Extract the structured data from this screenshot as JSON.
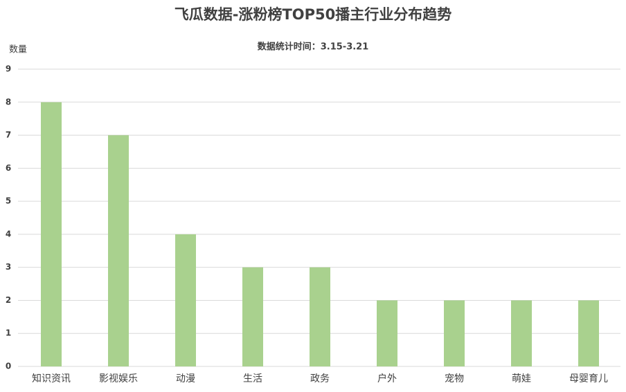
{
  "chart_data": {
    "type": "bar",
    "title": "飞瓜数据-涨粉榜TOP50播主行业分布趋势",
    "subtitle": "数据统计时间：3.15-3.21",
    "y_label": "数量",
    "categories": [
      "知识资讯",
      "影视娱乐",
      "动漫",
      "生活",
      "政务",
      "户外",
      "宠物",
      "萌娃",
      "母婴育儿"
    ],
    "values": [
      8,
      7,
      4,
      3,
      3,
      2,
      2,
      2,
      2
    ],
    "color": "#a9d18e",
    "ylim": [
      0,
      9
    ],
    "yticks": [
      0,
      1,
      2,
      3,
      4,
      5,
      6,
      7,
      8,
      9
    ],
    "grid": true
  }
}
